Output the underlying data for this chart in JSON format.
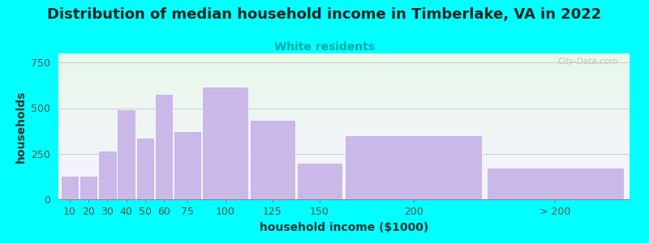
{
  "title": "Distribution of median household income in Timberlake, VA in 2022",
  "subtitle": "White residents",
  "xlabel": "household income ($1000)",
  "ylabel": "households",
  "categories": [
    "10",
    "20",
    "30",
    "40",
    "50",
    "60",
    "75",
    "100",
    "125",
    "150",
    "200",
    "> 200"
  ],
  "values": [
    130,
    130,
    265,
    495,
    340,
    580,
    375,
    620,
    435,
    200,
    350,
    175
  ],
  "bar_color": "#c9b8e8",
  "bar_edgecolor": "#ffffff",
  "ylim": [
    0,
    800
  ],
  "yticks": [
    0,
    250,
    500,
    750
  ],
  "background_color": "#00ffff",
  "title_fontsize": 13,
  "subtitle_fontsize": 10,
  "subtitle_color": "#00aaaa",
  "axis_label_fontsize": 10,
  "tick_fontsize": 9,
  "watermark": "City-Data.com",
  "bar_lefts": [
    0,
    10,
    20,
    30,
    40,
    50,
    60,
    75,
    100,
    125,
    150,
    225
  ],
  "bar_widths": [
    10,
    10,
    10,
    10,
    10,
    10,
    15,
    25,
    25,
    25,
    75,
    75
  ]
}
